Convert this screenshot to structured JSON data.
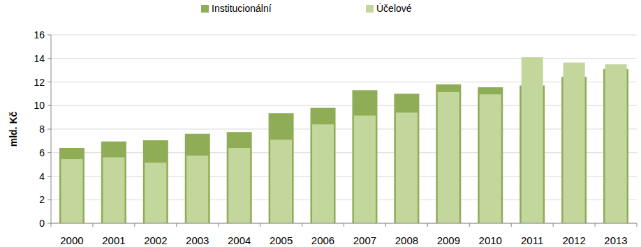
{
  "chart_data": {
    "type": "bar",
    "stacked": false,
    "y_label": "mld. Kč",
    "categories": [
      "2000",
      "2001",
      "2002",
      "2003",
      "2004",
      "2005",
      "2006",
      "2007",
      "2008",
      "2009",
      "2010",
      "2011",
      "2012",
      "2013"
    ],
    "series": [
      {
        "name": "Institucionální",
        "color": "#8fac57",
        "values": [
          6.4,
          6.95,
          7.05,
          7.6,
          7.75,
          9.35,
          9.8,
          11.3,
          11.0,
          11.8,
          11.55,
          11.7,
          12.45,
          13.1
        ]
      },
      {
        "name": "Účelové",
        "color": "#c3d69b",
        "values": [
          5.45,
          5.6,
          5.15,
          5.75,
          6.4,
          7.1,
          8.4,
          9.15,
          9.4,
          11.15,
          10.95,
          14.1,
          13.65,
          13.5
        ]
      }
    ],
    "ylim": [
      0,
      16
    ],
    "yticks": [
      0,
      2,
      4,
      6,
      8,
      10,
      12,
      14,
      16
    ],
    "grid": true,
    "legend": "top"
  }
}
